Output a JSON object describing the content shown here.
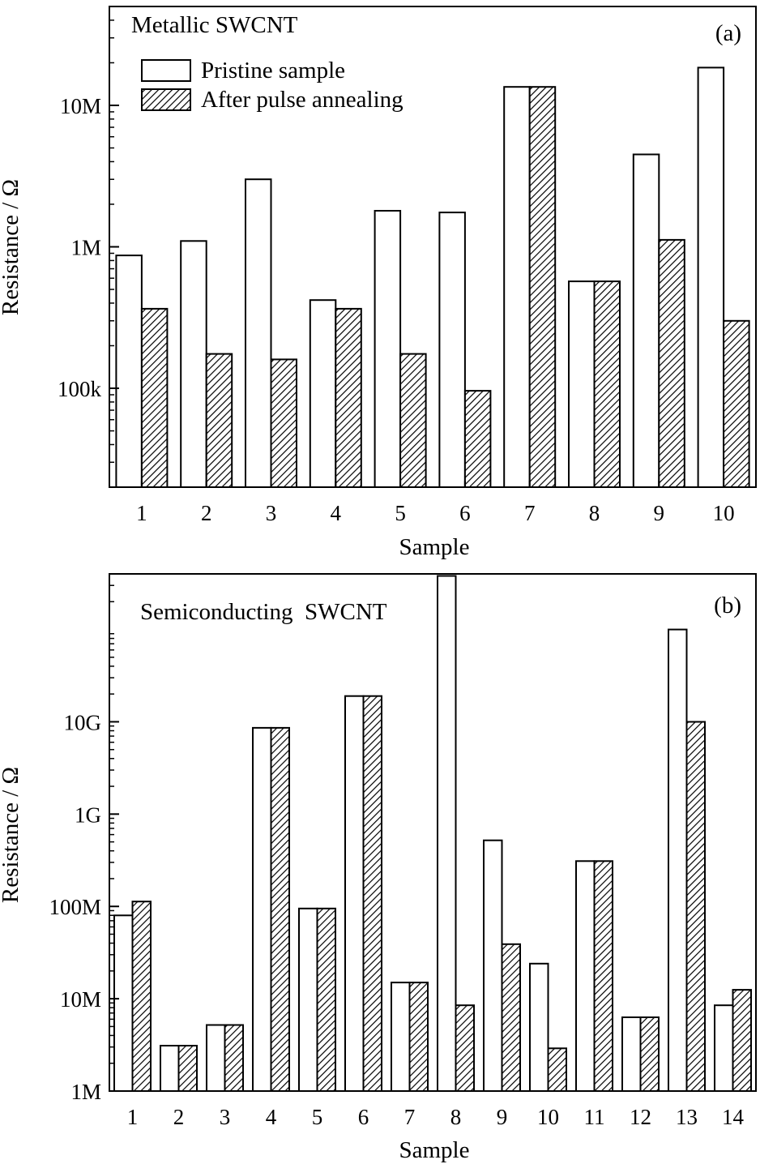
{
  "chart_data": [
    {
      "type": "bar",
      "panel_label": "(a)",
      "annotation": "Metallic SWCNT",
      "xlabel": "Sample",
      "ylabel": "Resistance / Ω",
      "yscale": "log",
      "ylim": [
        20000,
        50000000
      ],
      "yticks": [
        {
          "value": 100000,
          "label": "100k"
        },
        {
          "value": 1000000,
          "label": "1M"
        },
        {
          "value": 10000000,
          "label": "10M"
        }
      ],
      "categories": [
        "1",
        "2",
        "3",
        "4",
        "5",
        "6",
        "7",
        "8",
        "9",
        "10"
      ],
      "series": [
        {
          "name": "Pristine sample",
          "pattern": "none",
          "values": [
            870000,
            1100000,
            3000000,
            420000,
            1800000,
            1750000,
            13500000,
            570000,
            4500000,
            18500000
          ]
        },
        {
          "name": "After pulse annealing",
          "pattern": "hatch",
          "values": [
            365000,
            175000,
            160000,
            365000,
            175000,
            96000,
            13500000,
            570000,
            1120000,
            300000
          ]
        }
      ],
      "legend": "top-left",
      "grid": false
    },
    {
      "type": "bar",
      "panel_label": "(b)",
      "annotation": "Semiconducting  SWCNT",
      "xlabel": "Sample",
      "ylabel": "Resistance / Ω",
      "yscale": "log",
      "ylim": [
        1000000,
        400000000000
      ],
      "yticks": [
        {
          "value": 1000000,
          "label": "1M"
        },
        {
          "value": 10000000,
          "label": "10M"
        },
        {
          "value": 100000000,
          "label": "100M"
        },
        {
          "value": 1000000000,
          "label": "1G"
        },
        {
          "value": 10000000000,
          "label": "10G"
        }
      ],
      "categories": [
        "1",
        "2",
        "3",
        "4",
        "5",
        "6",
        "7",
        "8",
        "9",
        "10",
        "11",
        "12",
        "13",
        "14"
      ],
      "series": [
        {
          "name": "Pristine sample",
          "pattern": "none",
          "values": [
            80000000,
            3100000,
            5200000,
            8600000000,
            95000000,
            19000000000,
            15000000,
            380000000000,
            520000000,
            24000000,
            310000000,
            6300000,
            100000000000,
            8500000
          ]
        },
        {
          "name": "After pulse annealing",
          "pattern": "hatch",
          "values": [
            113000000,
            3100000,
            5200000,
            8600000000,
            95000000,
            19000000000,
            15000000,
            8500000,
            39000000,
            2900000,
            310000000,
            6300000,
            10000000000,
            12500000
          ]
        }
      ],
      "legend": "none",
      "grid": false
    }
  ]
}
